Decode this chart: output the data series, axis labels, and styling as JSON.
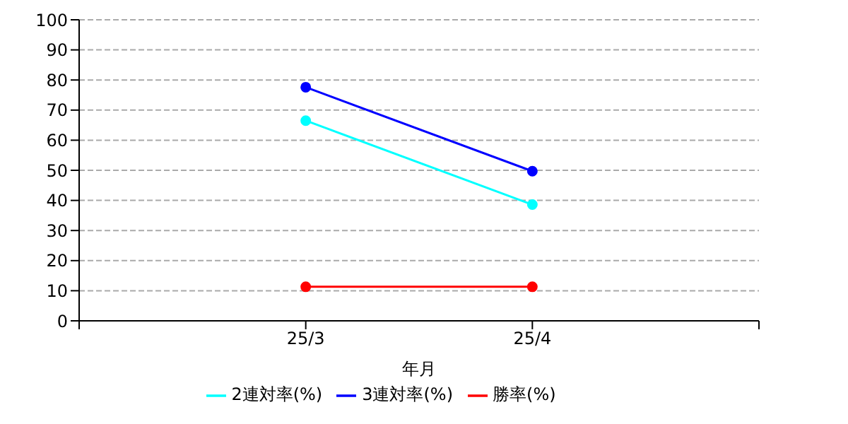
{
  "chart_data": {
    "type": "line",
    "xlabel": "年月",
    "categories": [
      null,
      "25/3",
      "25/4",
      null
    ],
    "series": [
      {
        "name": "勝率(%)",
        "color": "#ff0000",
        "values": [
          null,
          11.3,
          11.3,
          null
        ]
      },
      {
        "name": "2連対率(%)",
        "color": "#00ffff",
        "values": [
          null,
          66.5,
          38.6,
          null
        ]
      },
      {
        "name": "3連対率(%)",
        "color": "#0000ff",
        "values": [
          null,
          77.6,
          49.7,
          null
        ]
      }
    ],
    "ylim": [
      0,
      100
    ],
    "yticks": [
      0,
      10,
      20,
      30,
      40,
      50,
      60,
      70,
      80,
      90,
      100
    ],
    "grid": "y",
    "legend": "bottom",
    "marker": "circle",
    "line_style": "solid"
  }
}
